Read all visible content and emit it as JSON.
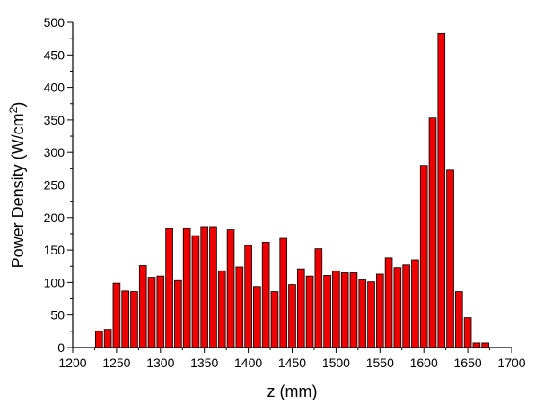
{
  "chart_data": {
    "type": "bar",
    "title": "",
    "xlabel": "z (mm)",
    "ylabel_main": "Power Density (W/cm",
    "ylabel_sup": "2",
    "ylabel_close": ")",
    "xlim": [
      1200,
      1700
    ],
    "ylim": [
      0,
      500
    ],
    "x_ticks": [
      1200,
      1250,
      1300,
      1350,
      1400,
      1450,
      1500,
      1550,
      1600,
      1650,
      1700
    ],
    "y_ticks": [
      0,
      50,
      100,
      150,
      200,
      250,
      300,
      350,
      400,
      450,
      500
    ],
    "bar_width": 8,
    "grid": false,
    "colors": {
      "bar_fill": "#ee0000",
      "bar_stroke": "#000000"
    },
    "x": [
      1230,
      1240,
      1250,
      1260,
      1270,
      1280,
      1290,
      1300,
      1310,
      1320,
      1330,
      1340,
      1350,
      1360,
      1370,
      1380,
      1390,
      1400,
      1410,
      1420,
      1430,
      1440,
      1450,
      1460,
      1470,
      1480,
      1490,
      1500,
      1510,
      1520,
      1530,
      1540,
      1550,
      1560,
      1570,
      1580,
      1590,
      1600,
      1610,
      1620,
      1630,
      1640,
      1650,
      1660,
      1670
    ],
    "values": [
      25,
      28,
      99,
      87,
      86,
      126,
      108,
      110,
      183,
      103,
      183,
      172,
      186,
      186,
      118,
      181,
      124,
      157,
      94,
      162,
      86,
      168,
      97,
      121,
      110,
      152,
      111,
      118,
      115,
      115,
      104,
      101,
      113,
      138,
      123,
      127,
      135,
      280,
      353,
      483,
      273,
      86,
      46,
      7,
      7
    ]
  }
}
